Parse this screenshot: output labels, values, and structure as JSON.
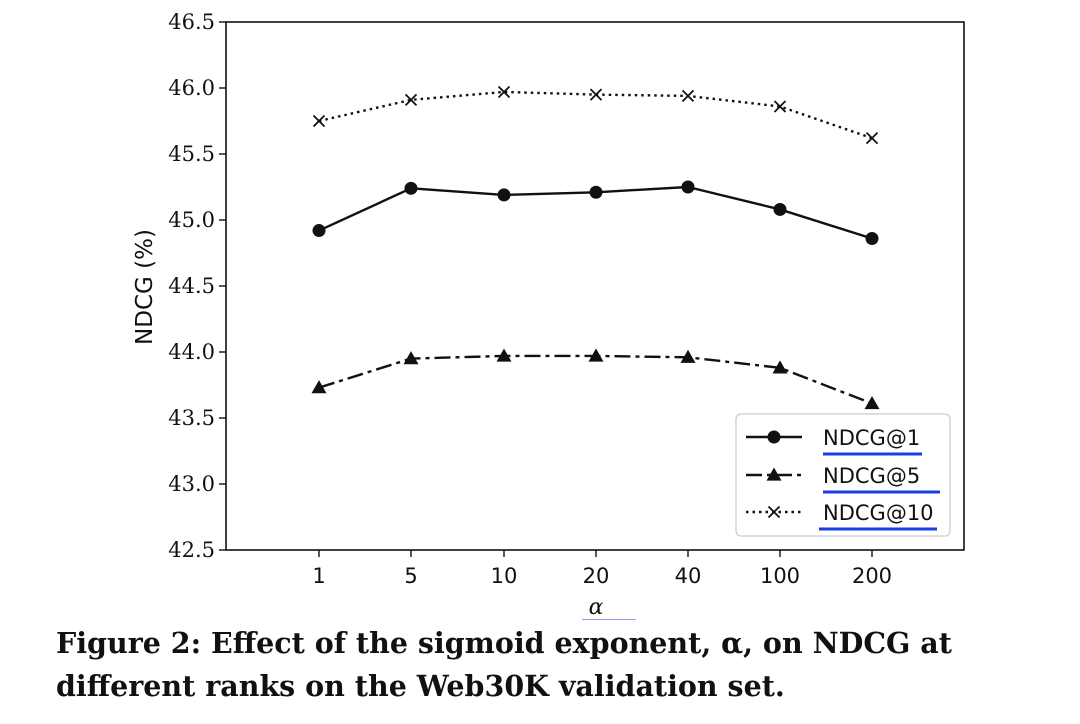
{
  "chart_data": {
    "type": "line",
    "categories": [
      "1",
      "5",
      "10",
      "20",
      "40",
      "100",
      "200"
    ],
    "series": [
      {
        "name": "NDCG@1",
        "values": [
          44.92,
          45.24,
          45.19,
          45.21,
          45.25,
          45.08,
          44.86
        ],
        "marker": "circle",
        "dash": "solid"
      },
      {
        "name": "NDCG@5",
        "values": [
          43.73,
          43.95,
          43.97,
          43.97,
          43.96,
          43.88,
          43.61
        ],
        "marker": "triangle",
        "dash": "dashdot"
      },
      {
        "name": "NDCG@10",
        "values": [
          45.75,
          45.91,
          45.97,
          45.95,
          45.94,
          45.86,
          45.62
        ],
        "marker": "x",
        "dash": "dotted"
      }
    ],
    "title": "",
    "xlabel": "α",
    "ylabel": "NDCG (%)",
    "ylim": [
      42.5,
      46.5
    ],
    "yticks": [
      "42.5",
      "43.0",
      "43.5",
      "44.0",
      "44.5",
      "45.0",
      "45.5",
      "46.0",
      "46.5"
    ],
    "grid": false,
    "legend_position": "lower-right"
  },
  "caption": "Figure 2: Effect of the sigmoid exponent, α, on NDCG at different ranks on the Web30K validation set.",
  "colors": {
    "line": "#111111",
    "underline": "#1a3ee0"
  }
}
